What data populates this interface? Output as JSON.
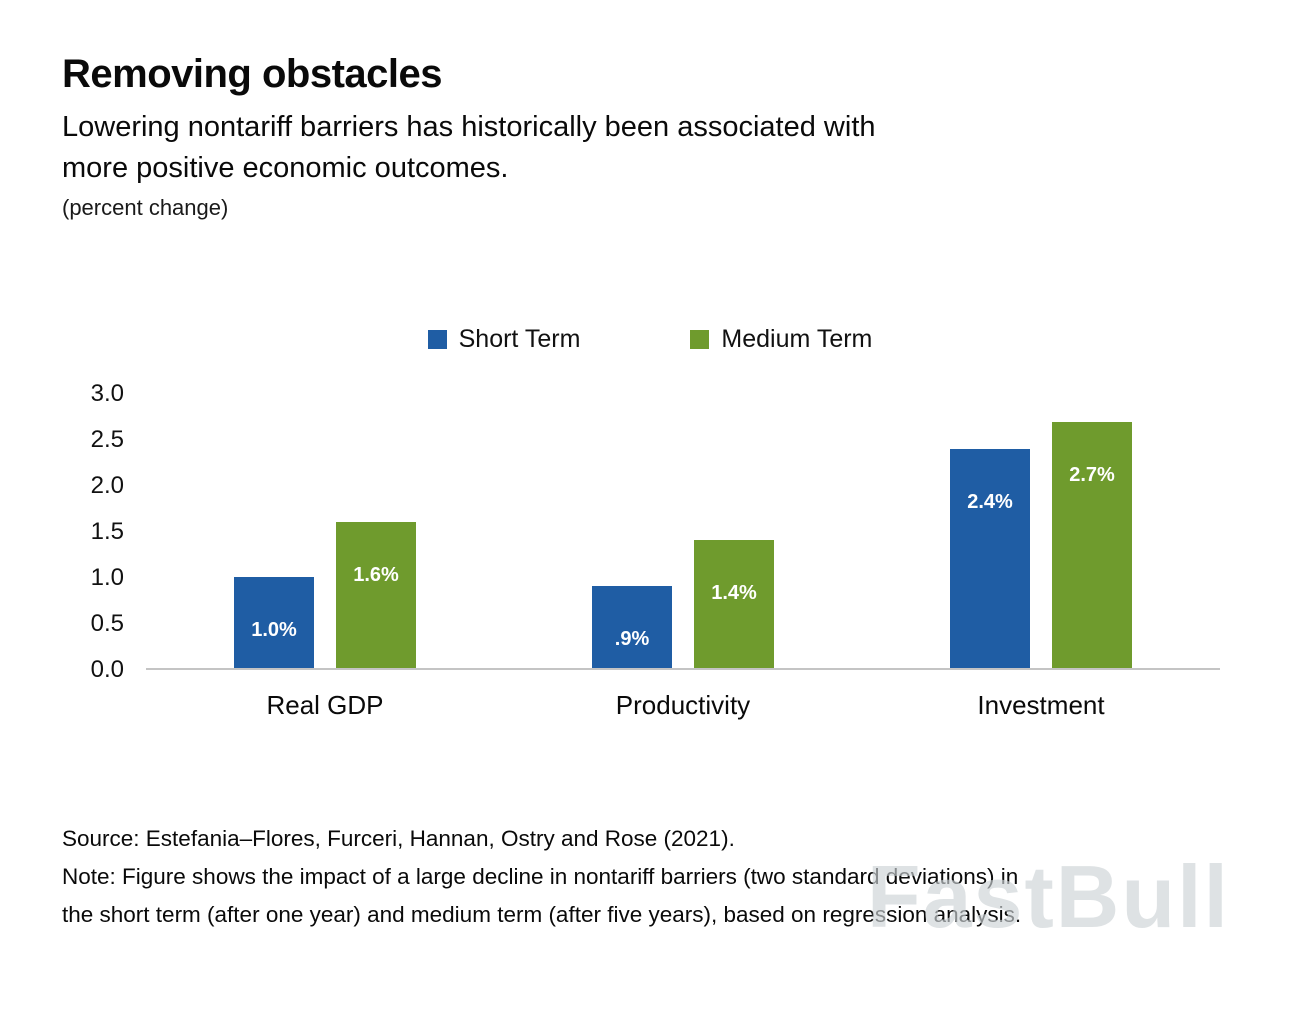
{
  "header": {
    "title": "Removing obstacles",
    "subtitle_lines": [
      "Lowering nontariff barriers has historically been associated with",
      "more positive economic outcomes."
    ],
    "unit": "(percent change)"
  },
  "chart_data": {
    "type": "bar",
    "title": "Removing obstacles",
    "subtitle": "Lowering nontariff barriers has historically been associated with more positive economic outcomes.",
    "unit": "(percent change)",
    "categories": [
      "Real GDP",
      "Productivity",
      "Investment"
    ],
    "series": [
      {
        "name": "Short Term",
        "color": "#1f5da4",
        "values": [
          1.0,
          0.9,
          2.4
        ],
        "labels": [
          "1.0%",
          ".9%",
          "2.4%"
        ]
      },
      {
        "name": "Medium Term",
        "color": "#6f9b2d",
        "values": [
          1.6,
          1.4,
          2.7
        ],
        "labels": [
          "1.6%",
          "1.4%",
          "2.7%"
        ]
      }
    ],
    "ylim": [
      0,
      3.0
    ],
    "yticks": [
      3.0,
      2.5,
      2.0,
      1.5,
      1.0,
      0.5,
      0.0
    ],
    "ytick_labels": [
      "3.0",
      "2.5",
      "2.0",
      "1.5",
      "1.0",
      "0.5",
      "0.0"
    ],
    "legend_position": "top",
    "grid": false
  },
  "footer": {
    "source": "Source: Estefania–Flores, Furceri, Hannan, Ostry and Rose (2021).",
    "note_lines": [
      "Note: Figure shows the impact of a large decline in nontariff barriers (two standard deviations) in",
      "the short term (after one year) and medium term (after five years), based on regression analysis."
    ]
  },
  "watermark": "FastBull"
}
